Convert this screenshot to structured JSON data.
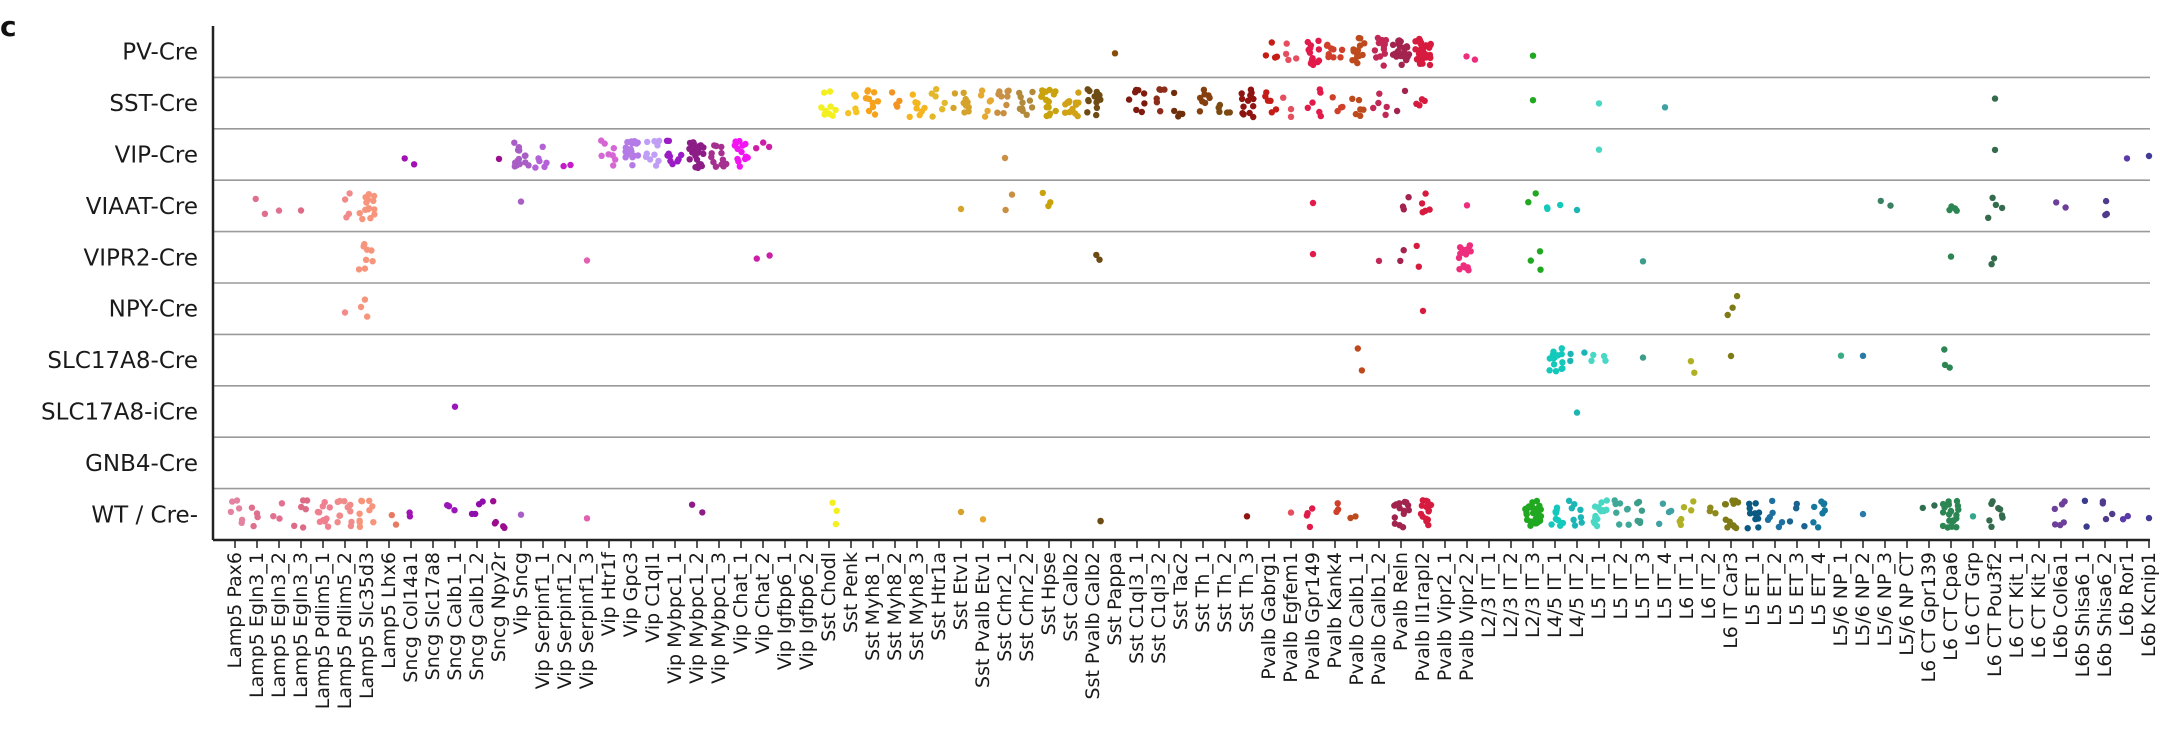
{
  "panel_label": "c",
  "chart_data": {
    "type": "scatter",
    "description_free": true,
    "rows": [
      "PV-Cre",
      "SST-Cre",
      "VIP-Cre",
      "VIAAT-Cre",
      "VIPR2-Cre",
      "NPY-Cre",
      "SLC17A8-Cre",
      "SLC17A8-iCre",
      "GNB4-Cre",
      "WT / Cre-"
    ],
    "columns": [
      {
        "name": "Lamp5 Pax6",
        "color": "#e383a1"
      },
      {
        "name": "Lamp5 Egln3_1",
        "color": "#e06f8e"
      },
      {
        "name": "Lamp5 Egln3_2",
        "color": "#e27190"
      },
      {
        "name": "Lamp5 Egln3_3",
        "color": "#dd6b86"
      },
      {
        "name": "Lamp5 Pdlim5_1",
        "color": "#f07f8f"
      },
      {
        "name": "Lamp5 Pdlim5_2",
        "color": "#f18a8a"
      },
      {
        "name": "Lamp5 Slc35d3",
        "color": "#f7957c"
      },
      {
        "name": "Lamp5 Lhx6",
        "color": "#e77a62"
      },
      {
        "name": "Sncg Col14a1",
        "color": "#a112b5"
      },
      {
        "name": "Sncg Slc17a8",
        "color": "#b515c6"
      },
      {
        "name": "Sncg Calb1_1",
        "color": "#9a16b8"
      },
      {
        "name": "Sncg Calb1_2",
        "color": "#8e0dab"
      },
      {
        "name": "Sncg Npy2r",
        "color": "#9b0d8f"
      },
      {
        "name": "Vip Sncg",
        "color": "#a85ec4"
      },
      {
        "name": "Vip Serpinf1_1",
        "color": "#b461d8"
      },
      {
        "name": "Vip Serpinf1_2",
        "color": "#c51cc9"
      },
      {
        "name": "Vip Serpinf1_3",
        "color": "#e35fb0"
      },
      {
        "name": "Vip Htr1f",
        "color": "#d567d5"
      },
      {
        "name": "Vip Gpc3",
        "color": "#b47ae6"
      },
      {
        "name": "Vip C1ql1",
        "color": "#c09ef5"
      },
      {
        "name": "Vip Mybpc1_1",
        "color": "#9b1cc5"
      },
      {
        "name": "Vip Mybpc1_2",
        "color": "#8d1d86"
      },
      {
        "name": "Vip Mybpc1_3",
        "color": "#a6308f"
      },
      {
        "name": "Vip Chat_1",
        "color": "#f215f2"
      },
      {
        "name": "Vip Chat_2",
        "color": "#cc1fa6"
      },
      {
        "name": "Vip Igfbp6_1",
        "color": "#8c2384"
      },
      {
        "name": "Vip Igfbp6_2",
        "color": "#7d1d6e"
      },
      {
        "name": "Sst Chodl",
        "color": "#f4ef1e"
      },
      {
        "name": "Sst Penk",
        "color": "#f5c422"
      },
      {
        "name": "Sst Myh8_1",
        "color": "#f7a21b"
      },
      {
        "name": "Sst Myh8_2",
        "color": "#f39321"
      },
      {
        "name": "Sst Myh8_3",
        "color": "#f5b51f"
      },
      {
        "name": "Sst Htr1a",
        "color": "#e3b82c"
      },
      {
        "name": "Sst Etv1",
        "color": "#d5a32b"
      },
      {
        "name": "Sst Pvalb Etv1",
        "color": "#e5a832"
      },
      {
        "name": "Sst Crhr2_1",
        "color": "#c98f43"
      },
      {
        "name": "Sst Crhr2_2",
        "color": "#b28a3c"
      },
      {
        "name": "Sst Hpse",
        "color": "#c9a20c"
      },
      {
        "name": "Sst Calb2",
        "color": "#d1a215"
      },
      {
        "name": "Sst Pvalb Calb2",
        "color": "#6d4b13"
      },
      {
        "name": "Sst Pappa",
        "color": "#8a4b0a"
      },
      {
        "name": "Sst C1ql3_1",
        "color": "#7f1a0e"
      },
      {
        "name": "Sst C1ql3_2",
        "color": "#8c2c1a"
      },
      {
        "name": "Sst Tac2",
        "color": "#6e2e0a"
      },
      {
        "name": "Sst Th_1",
        "color": "#86400f"
      },
      {
        "name": "Sst Th_2",
        "color": "#7c4a10"
      },
      {
        "name": "Sst Th_3",
        "color": "#8f1410"
      },
      {
        "name": "Pvalb Gabrg1",
        "color": "#c51c16"
      },
      {
        "name": "Pvalb Egfem1",
        "color": "#e54e5f"
      },
      {
        "name": "Pvalb Gpr149",
        "color": "#e11a4a"
      },
      {
        "name": "Pvalb Kank4",
        "color": "#cf3f2a"
      },
      {
        "name": "Pvalb Calb1_1",
        "color": "#bd4a1d"
      },
      {
        "name": "Pvalb Calb1_2",
        "color": "#c22856"
      },
      {
        "name": "Pvalb Reln",
        "color": "#a3234f"
      },
      {
        "name": "Pvalb Il1rapl2",
        "color": "#d61b3e"
      },
      {
        "name": "Pvalb Vipr2_1",
        "color": "#f0249a"
      },
      {
        "name": "Pvalb Vipr2_2",
        "color": "#ee2d7d"
      },
      {
        "name": "L2/3 IT_1",
        "color": "#2ec42e"
      },
      {
        "name": "L2/3 IT_2",
        "color": "#24b524"
      },
      {
        "name": "L2/3 IT_3",
        "color": "#21a821"
      },
      {
        "name": "L4/5 IT_1",
        "color": "#12c9bb"
      },
      {
        "name": "L4/5 IT_2",
        "color": "#1cb5b5"
      },
      {
        "name": "L5 IT_1",
        "color": "#4ad8c4"
      },
      {
        "name": "L5 IT_2",
        "color": "#3fa897"
      },
      {
        "name": "L5 IT_3",
        "color": "#3c9e8a"
      },
      {
        "name": "L5 IT_4",
        "color": "#3fa1a1"
      },
      {
        "name": "L6 IT_1",
        "color": "#b0b024"
      },
      {
        "name": "L6 IT_2",
        "color": "#8f8a1f"
      },
      {
        "name": "L6 IT Car3",
        "color": "#7e7a15"
      },
      {
        "name": "L5 ET_1",
        "color": "#0a5a84"
      },
      {
        "name": "L5 ET_2",
        "color": "#1d6fa0"
      },
      {
        "name": "L5 ET_3",
        "color": "#1b6390"
      },
      {
        "name": "L5 ET_4",
        "color": "#15769e"
      },
      {
        "name": "L5/6 NP_1",
        "color": "#3daa86"
      },
      {
        "name": "L5/6 NP_2",
        "color": "#2a7aa8"
      },
      {
        "name": "L5/6 NP_3",
        "color": "#3a8063"
      },
      {
        "name": "L5/6 NP CT",
        "color": "#31876c"
      },
      {
        "name": "L6 CT Gpr139",
        "color": "#2f6e50"
      },
      {
        "name": "L6 CT Cpa6",
        "color": "#2c8653"
      },
      {
        "name": "L6 CT Grp",
        "color": "#35a58c"
      },
      {
        "name": "L6 CT Pou3f2",
        "color": "#356b4d"
      },
      {
        "name": "L6 CT Kit_1",
        "color": "#2a7a5a"
      },
      {
        "name": "L6 CT Kit_2",
        "color": "#318062"
      },
      {
        "name": "L6b Col6a1",
        "color": "#6d3f9b"
      },
      {
        "name": "L6b Shisa6_1",
        "color": "#3a3b8c"
      },
      {
        "name": "L6b Shisa6_2",
        "color": "#503a8e"
      },
      {
        "name": "L6b Ror1",
        "color": "#5c3aa8"
      },
      {
        "name": "L6b Kcnip1",
        "color": "#433a96"
      }
    ],
    "counts": {
      "PV-Cre": {
        "Sst Pappa": 1,
        "Pvalb Gabrg1": 4,
        "Pvalb Egfem1": 4,
        "Pvalb Gpr149": 14,
        "Pvalb Kank4": 10,
        "Pvalb Calb1_1": 14,
        "Pvalb Calb1_2": 12,
        "Pvalb Reln": 22,
        "Pvalb Il1rapl2": 32,
        "Pvalb Vipr2_2": 2,
        "L2/3 IT_3": 1
      },
      "SST-Cre": {
        "Sst Chodl": 10,
        "Sst Penk": 6,
        "Sst Myh8_1": 10,
        "Sst Myh8_2": 4,
        "Sst Myh8_3": 8,
        "Sst Htr1a": 6,
        "Sst Etv1": 10,
        "Sst Pvalb Etv1": 6,
        "Sst Crhr2_1": 9,
        "Sst Crhr2_2": 10,
        "Sst Hpse": 16,
        "Sst Calb2": 14,
        "Sst Pvalb Calb2": 14,
        "Sst C1ql3_1": 8,
        "Sst C1ql3_2": 6,
        "Sst Tac2": 5,
        "Sst Th_1": 8,
        "Sst Th_2": 5,
        "Sst Th_3": 14,
        "Pvalb Gabrg1": 6,
        "Pvalb Egfem1": 3,
        "Pvalb Gpr149": 6,
        "Pvalb Kank4": 4,
        "Pvalb Calb1_1": 6,
        "Pvalb Calb1_2": 5,
        "Pvalb Reln": 2,
        "Pvalb Il1rapl2": 4,
        "L2/3 IT_3": 1,
        "L5 IT_1": 1,
        "L5 IT_4": 1,
        "L6 CT Pou3f2": 1
      },
      "VIP-Cre": {
        "Sncg Col14a1": 2,
        "Sncg Npy2r": 1,
        "Vip Sncg": 14,
        "Vip Serpinf1_1": 6,
        "Vip Serpinf1_2": 2,
        "Vip Htr1f": 8,
        "Vip Gpc3": 18,
        "Vip C1ql1": 10,
        "Vip Mybpc1_1": 10,
        "Vip Mybpc1_2": 24,
        "Vip Mybpc1_3": 12,
        "Vip Chat_1": 14,
        "Vip Chat_2": 3,
        "Sst Crhr2_1": 1,
        "L5 IT_1": 1,
        "L6 CT Pou3f2": 1,
        "L6b Ror1": 1,
        "L6b Kcnip1": 1
      },
      "VIAAT-Cre": {
        "Lamp5 Egln3_1": 2,
        "Lamp5 Egln3_2": 1,
        "Lamp5 Egln3_3": 1,
        "Lamp5 Pdlim5_2": 4,
        "Lamp5 Slc35d3": 14,
        "Vip Sncg": 1,
        "Sst Etv1": 1,
        "Sst Crhr2_1": 2,
        "Sst Hpse": 3,
        "Pvalb Gpr149": 1,
        "Pvalb Reln": 3,
        "Pvalb Il1rapl2": 5,
        "Pvalb Vipr2_2": 1,
        "L2/3 IT_3": 2,
        "L4/5 IT_1": 3,
        "L4/5 IT_2": 1,
        "L5/6 NP_3": 2,
        "L6 CT Cpa6": 4,
        "L6 CT Pou3f2": 4,
        "L6b Col6a1": 2,
        "L6b Shisa6_2": 3
      },
      "VIPR2-Cre": {
        "Lamp5 Slc35d3": 8,
        "Vip Serpinf1_3": 1,
        "Vip Chat_2": 2,
        "Sst Pvalb Calb2": 2,
        "Pvalb Gpr149": 1,
        "Pvalb Calb1_2": 1,
        "Pvalb Reln": 2,
        "Pvalb Il1rapl2": 2,
        "Pvalb Vipr2_2": 14,
        "L2/3 IT_3": 3,
        "L5 IT_3": 1,
        "L6 CT Cpa6": 1,
        "L6 CT Pou3f2": 2
      },
      "NPY-Cre": {
        "Lamp5 Pdlim5_2": 1,
        "Lamp5 Slc35d3": 3,
        "Pvalb Il1rapl2": 1,
        "L6 IT Car3": 3
      },
      "SLC17A8-Cre": {
        "Pvalb Calb1_1": 2,
        "L4/5 IT_1": 14,
        "L4/5 IT_2": 3,
        "L5 IT_1": 4,
        "L5 IT_3": 1,
        "L6 IT_1": 2,
        "L6 IT Car3": 1,
        "L5/6 NP_1": 1,
        "L5/6 NP_2": 1,
        "L6 CT Cpa6": 3
      },
      "SLC17A8-iCre": {
        "Sncg Calb1_1": 1,
        "L4/5 IT_2": 1
      },
      "GNB4-Cre": {},
      "WT / Cre-": {
        "Lamp5 Pax6": 6,
        "Lamp5 Egln3_1": 4,
        "Lamp5 Egln3_2": 3,
        "Lamp5 Egln3_3": 6,
        "Lamp5 Pdlim5_1": 10,
        "Lamp5 Pdlim5_2": 12,
        "Lamp5 Slc35d3": 10,
        "Lamp5 Lhx6": 2,
        "Sncg Col14a1": 2,
        "Sncg Calb1_1": 3,
        "Sncg Calb1_2": 4,
        "Sncg Npy2r": 5,
        "Vip Sncg": 1,
        "Vip Serpinf1_3": 1,
        "Vip Mybpc1_2": 2,
        "Sst Chodl": 3,
        "Sst Etv1": 1,
        "Sst Pvalb Etv1": 1,
        "Sst Pvalb Calb2": 2,
        "Sst Th_3": 1,
        "Pvalb Egfem1": 1,
        "Pvalb Gpr149": 4,
        "Pvalb Kank4": 3,
        "Pvalb Calb1_1": 2,
        "Pvalb Reln": 14,
        "Pvalb Il1rapl2": 14,
        "L2/3 IT_3": 28,
        "L4/5 IT_1": 10,
        "L4/5 IT_2": 8,
        "L5 IT_1": 16,
        "L5 IT_2": 8,
        "L5 IT_3": 6,
        "L5 IT_4": 4,
        "L6 IT_1": 6,
        "L6 IT_2": 3,
        "L6 IT Car3": 14,
        "L5 ET_1": 10,
        "L5 ET_2": 6,
        "L5 ET_3": 4,
        "L5 ET_4": 8,
        "L5/6 NP_2": 1,
        "L6 CT Gpr139": 2,
        "L6 CT Cpa6": 22,
        "L6 CT Grp": 1,
        "L6 CT Pou3f2": 8,
        "L6b Col6a1": 6,
        "L6b Shisa6_1": 2,
        "L6b Shisa6_2": 4,
        "L6b Ror1": 2,
        "L6b Kcnip1": 1
      }
    },
    "grid": true,
    "legend": "none"
  }
}
